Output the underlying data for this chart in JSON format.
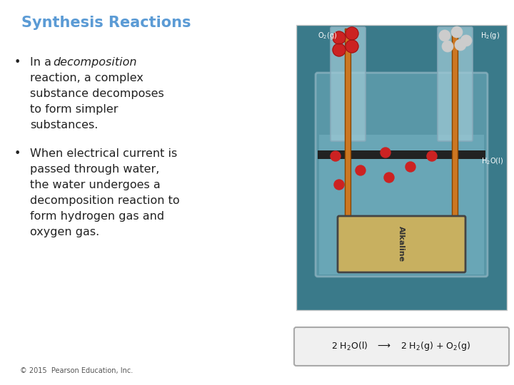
{
  "title": "Synthesis Reactions",
  "title_color": "#5B9BD5",
  "title_fontsize": 15,
  "background_color": "#FFFFFF",
  "bullet_color": "#222222",
  "bullet_fontsize": 11.5,
  "footer": "© 2015  Pearson Education, Inc.",
  "footer_fontsize": 7,
  "footer_color": "#555555",
  "lines_b1": [
    "reaction, a complex",
    "substance decomposes",
    "to form simpler",
    "substances."
  ],
  "lines_b2": [
    "When electrical current is",
    "passed through water,",
    "the water undergoes a",
    "decomposition reaction to",
    "form hydrogen gas and",
    "oxygen gas."
  ],
  "image_bg": "#3a7a8a",
  "beaker_color": "#6aa8b8",
  "tube_color": "#9dc8d4",
  "rod_color": "#cc7722",
  "battery_color": "#c8b060",
  "o2_color": "#cc2222",
  "h2_color": "#cccccc",
  "eq_box_color": "#f0f0f0",
  "eq_border_color": "#aaaaaa"
}
